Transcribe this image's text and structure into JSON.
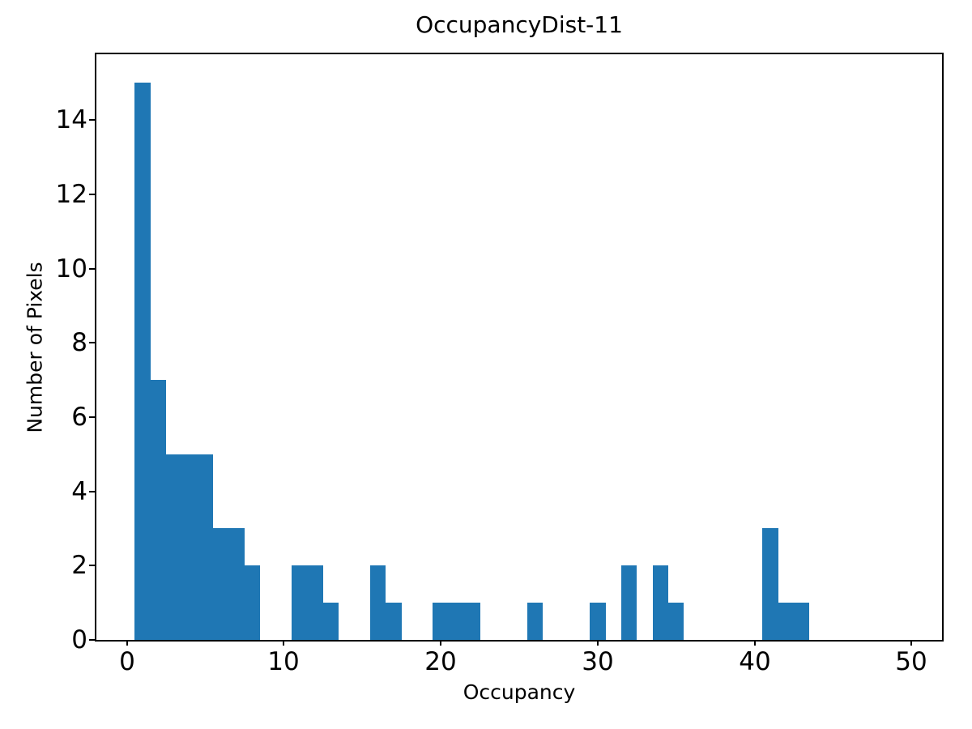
{
  "figure": {
    "background_color": "#ffffff",
    "text_color": "#000000",
    "spine_color": "#000000"
  },
  "chart_data": {
    "type": "bar",
    "subtype": "histogram",
    "title": "OccupancyDist-11",
    "xlabel": "Occupancy",
    "ylabel": "Number of Pixels",
    "bar_color": "#1f77b4",
    "grid": false,
    "legend": null,
    "bin_start": 0.5,
    "bin_width": 1,
    "counts": [
      15,
      7,
      5,
      5,
      5,
      3,
      3,
      2,
      0,
      0,
      2,
      2,
      1,
      0,
      0,
      2,
      1,
      0,
      0,
      1,
      1,
      1,
      0,
      0,
      0,
      1,
      0,
      0,
      0,
      1,
      0,
      2,
      0,
      2,
      1,
      0,
      0,
      0,
      0,
      0,
      3,
      1,
      1,
      0,
      0,
      0,
      0,
      0,
      0
    ],
    "xlim": [
      -1.95,
      51.95
    ],
    "ylim": [
      0,
      15.77
    ],
    "xticks": [
      0,
      10,
      20,
      30,
      40,
      50
    ],
    "yticks": [
      0,
      2,
      4,
      6,
      8,
      10,
      12,
      14
    ]
  }
}
